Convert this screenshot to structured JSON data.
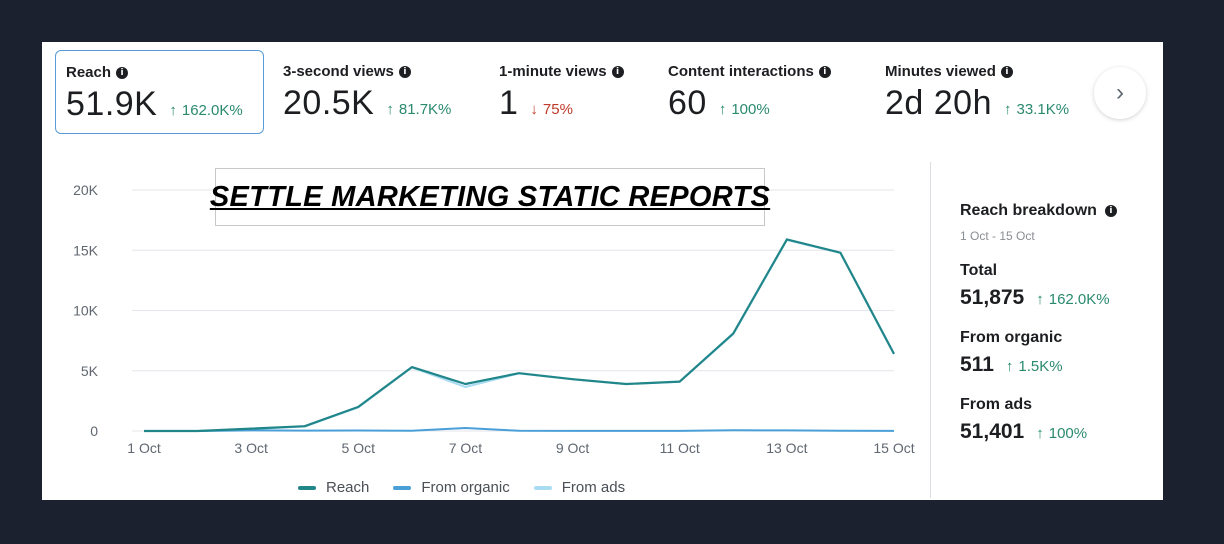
{
  "metrics": [
    {
      "label": "Reach",
      "value": "51.9K",
      "arrow": "↑",
      "change": "162.0K%",
      "direction": "up",
      "selected": true
    },
    {
      "label": "3-second views",
      "value": "20.5K",
      "arrow": "↑",
      "change": "81.7K%",
      "direction": "up"
    },
    {
      "label": "1-minute views",
      "value": "1",
      "arrow": "↓",
      "change": "75%",
      "direction": "down"
    },
    {
      "label": "Content interactions",
      "value": "60",
      "arrow": "↑",
      "change": "100%",
      "direction": "up"
    },
    {
      "label": "Minutes viewed",
      "value": "2d 20h",
      "arrow": "↑",
      "change": "33.1K%",
      "direction": "up"
    }
  ],
  "info_icon": "i",
  "next_button": {
    "icon": "chevron-right-icon",
    "glyph": "›"
  },
  "overlay_title": "SETTLE MARKETING STATIC REPORTS",
  "colors": {
    "reach": "#20868a",
    "organic": "#4a9fd8",
    "ads": "#a9dcf2",
    "grid": "#e4e6eb",
    "up": "#2a8a6e",
    "down": "#c0392b"
  },
  "chart_data": {
    "type": "line",
    "x": [
      "1 Oct",
      "2 Oct",
      "3 Oct",
      "4 Oct",
      "5 Oct",
      "6 Oct",
      "7 Oct",
      "8 Oct",
      "9 Oct",
      "10 Oct",
      "11 Oct",
      "12 Oct",
      "13 Oct",
      "14 Oct",
      "15 Oct"
    ],
    "x_tick_labels": [
      "1 Oct",
      "3 Oct",
      "5 Oct",
      "7 Oct",
      "9 Oct",
      "11 Oct",
      "13 Oct",
      "15 Oct"
    ],
    "y_tick_labels": [
      "0",
      "5K",
      "10K",
      "15K",
      "20K"
    ],
    "y_ticks": [
      0,
      5000,
      10000,
      15000,
      20000
    ],
    "ylim": [
      0,
      20000
    ],
    "series": [
      {
        "name": "Reach",
        "color": "#20868a",
        "values": [
          0,
          0,
          200,
          400,
          2000,
          5300,
          3900,
          4800,
          4300,
          3900,
          4100,
          8100,
          15900,
          14800,
          6400
        ]
      },
      {
        "name": "From organic",
        "color": "#4a9fd8",
        "values": [
          0,
          0,
          50,
          30,
          40,
          20,
          250,
          20,
          10,
          10,
          10,
          60,
          50,
          20,
          10
        ]
      },
      {
        "name": "From ads",
        "color": "#a9dcf2",
        "values": [
          0,
          0,
          150,
          370,
          1960,
          5280,
          3650,
          4780,
          4290,
          3890,
          4090,
          8040,
          15850,
          14780,
          6390
        ]
      }
    ],
    "grid": true,
    "legend": "bottom"
  },
  "breakdown": {
    "title": "Reach breakdown",
    "range": "1 Oct - 15 Oct",
    "items": [
      {
        "label": "Total",
        "value": "51,875",
        "arrow": "↑",
        "change": "162.0K%"
      },
      {
        "label": "From organic",
        "value": "511",
        "arrow": "↑",
        "change": "1.5K%"
      },
      {
        "label": "From ads",
        "value": "51,401",
        "arrow": "↑",
        "change": "100%"
      }
    ]
  }
}
